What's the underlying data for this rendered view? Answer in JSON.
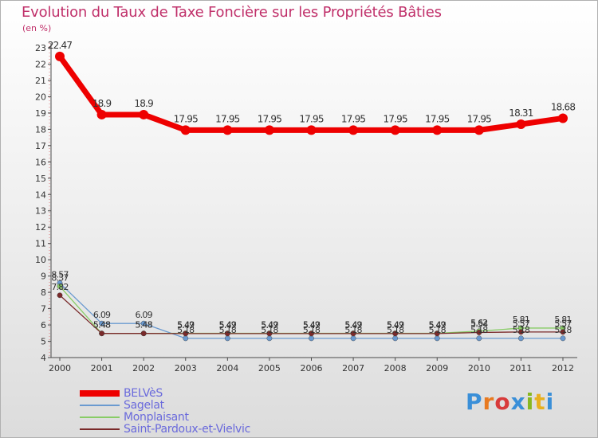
{
  "title": "Evolution du Taux de Taxe Foncière sur les Propriétés Bâties",
  "unit_label": "(en %)",
  "logo_text": "Proxiti",
  "colors": {
    "title": "#c0306a",
    "legend_text": "#6a6adc",
    "axis": "#4a4a4a"
  },
  "chart_data": {
    "type": "line",
    "title": "Evolution du Taux de Taxe Foncière sur les Propriétés Bâties",
    "ylabel": "(en %)",
    "xlabel": "",
    "ylim": [
      4,
      23
    ],
    "yticks": [
      4,
      5,
      6,
      7,
      8,
      9,
      10,
      11,
      12,
      13,
      14,
      15,
      16,
      17,
      18,
      19,
      20,
      21,
      22,
      23
    ],
    "x": [
      "2000",
      "2001",
      "2002",
      "2003",
      "2004",
      "2005",
      "2006",
      "2007",
      "2008",
      "2009",
      "2010",
      "2011",
      "2012"
    ],
    "series": [
      {
        "name": "BELVèS",
        "color": "#ee0000",
        "values": [
          22.47,
          18.9,
          18.9,
          17.95,
          17.95,
          17.95,
          17.95,
          17.95,
          17.95,
          17.95,
          17.95,
          18.31,
          18.68
        ],
        "labels": [
          "22.47",
          "18.9",
          "18.9",
          "17.95",
          "17.95",
          "17.95",
          "17.95",
          "17.95",
          "17.95",
          "17.95",
          "17.95",
          "18.31",
          "18.68"
        ]
      },
      {
        "name": "Sagelat",
        "color": "#6a9ad0",
        "values": [
          8.57,
          6.09,
          6.09,
          5.18,
          5.18,
          5.18,
          5.18,
          5.18,
          5.18,
          5.18,
          5.18,
          5.18,
          5.18
        ],
        "labels": [
          "8.57",
          "6.09",
          "6.09",
          "5.18",
          "5.18",
          "5.18",
          "5.18",
          "5.18",
          "5.18",
          "5.18",
          "5.18",
          "5.18",
          "5.18"
        ]
      },
      {
        "name": "Monplaisant",
        "color": "#88cc66",
        "values": [
          8.37,
          5.48,
          5.48,
          5.49,
          5.49,
          5.49,
          5.49,
          5.49,
          5.49,
          5.49,
          5.62,
          5.81,
          5.81
        ],
        "labels": [
          "8.37",
          "5.48",
          "5.48",
          "5.49",
          "5.49",
          "5.49",
          "5.49",
          "5.49",
          "5.49",
          "5.49",
          "5.62",
          "5.81",
          "5.81"
        ]
      },
      {
        "name": "Saint-Pardoux-et-Vielvic",
        "color": "#7a2a2a",
        "values": [
          7.82,
          5.48,
          5.48,
          5.47,
          5.47,
          5.47,
          5.47,
          5.47,
          5.47,
          5.47,
          5.54,
          5.57,
          5.57
        ],
        "labels": [
          "7.82",
          "5.48",
          "5.48",
          "5.47",
          "5.47",
          "5.47",
          "5.47",
          "5.47",
          "5.47",
          "5.47",
          "5.54",
          "5.57",
          "5.57"
        ]
      }
    ],
    "legend": [
      "BELVèS",
      "Sagelat",
      "Monplaisant",
      "Saint-Pardoux-et-Vielvic"
    ],
    "legend_position": "bottom-left"
  }
}
